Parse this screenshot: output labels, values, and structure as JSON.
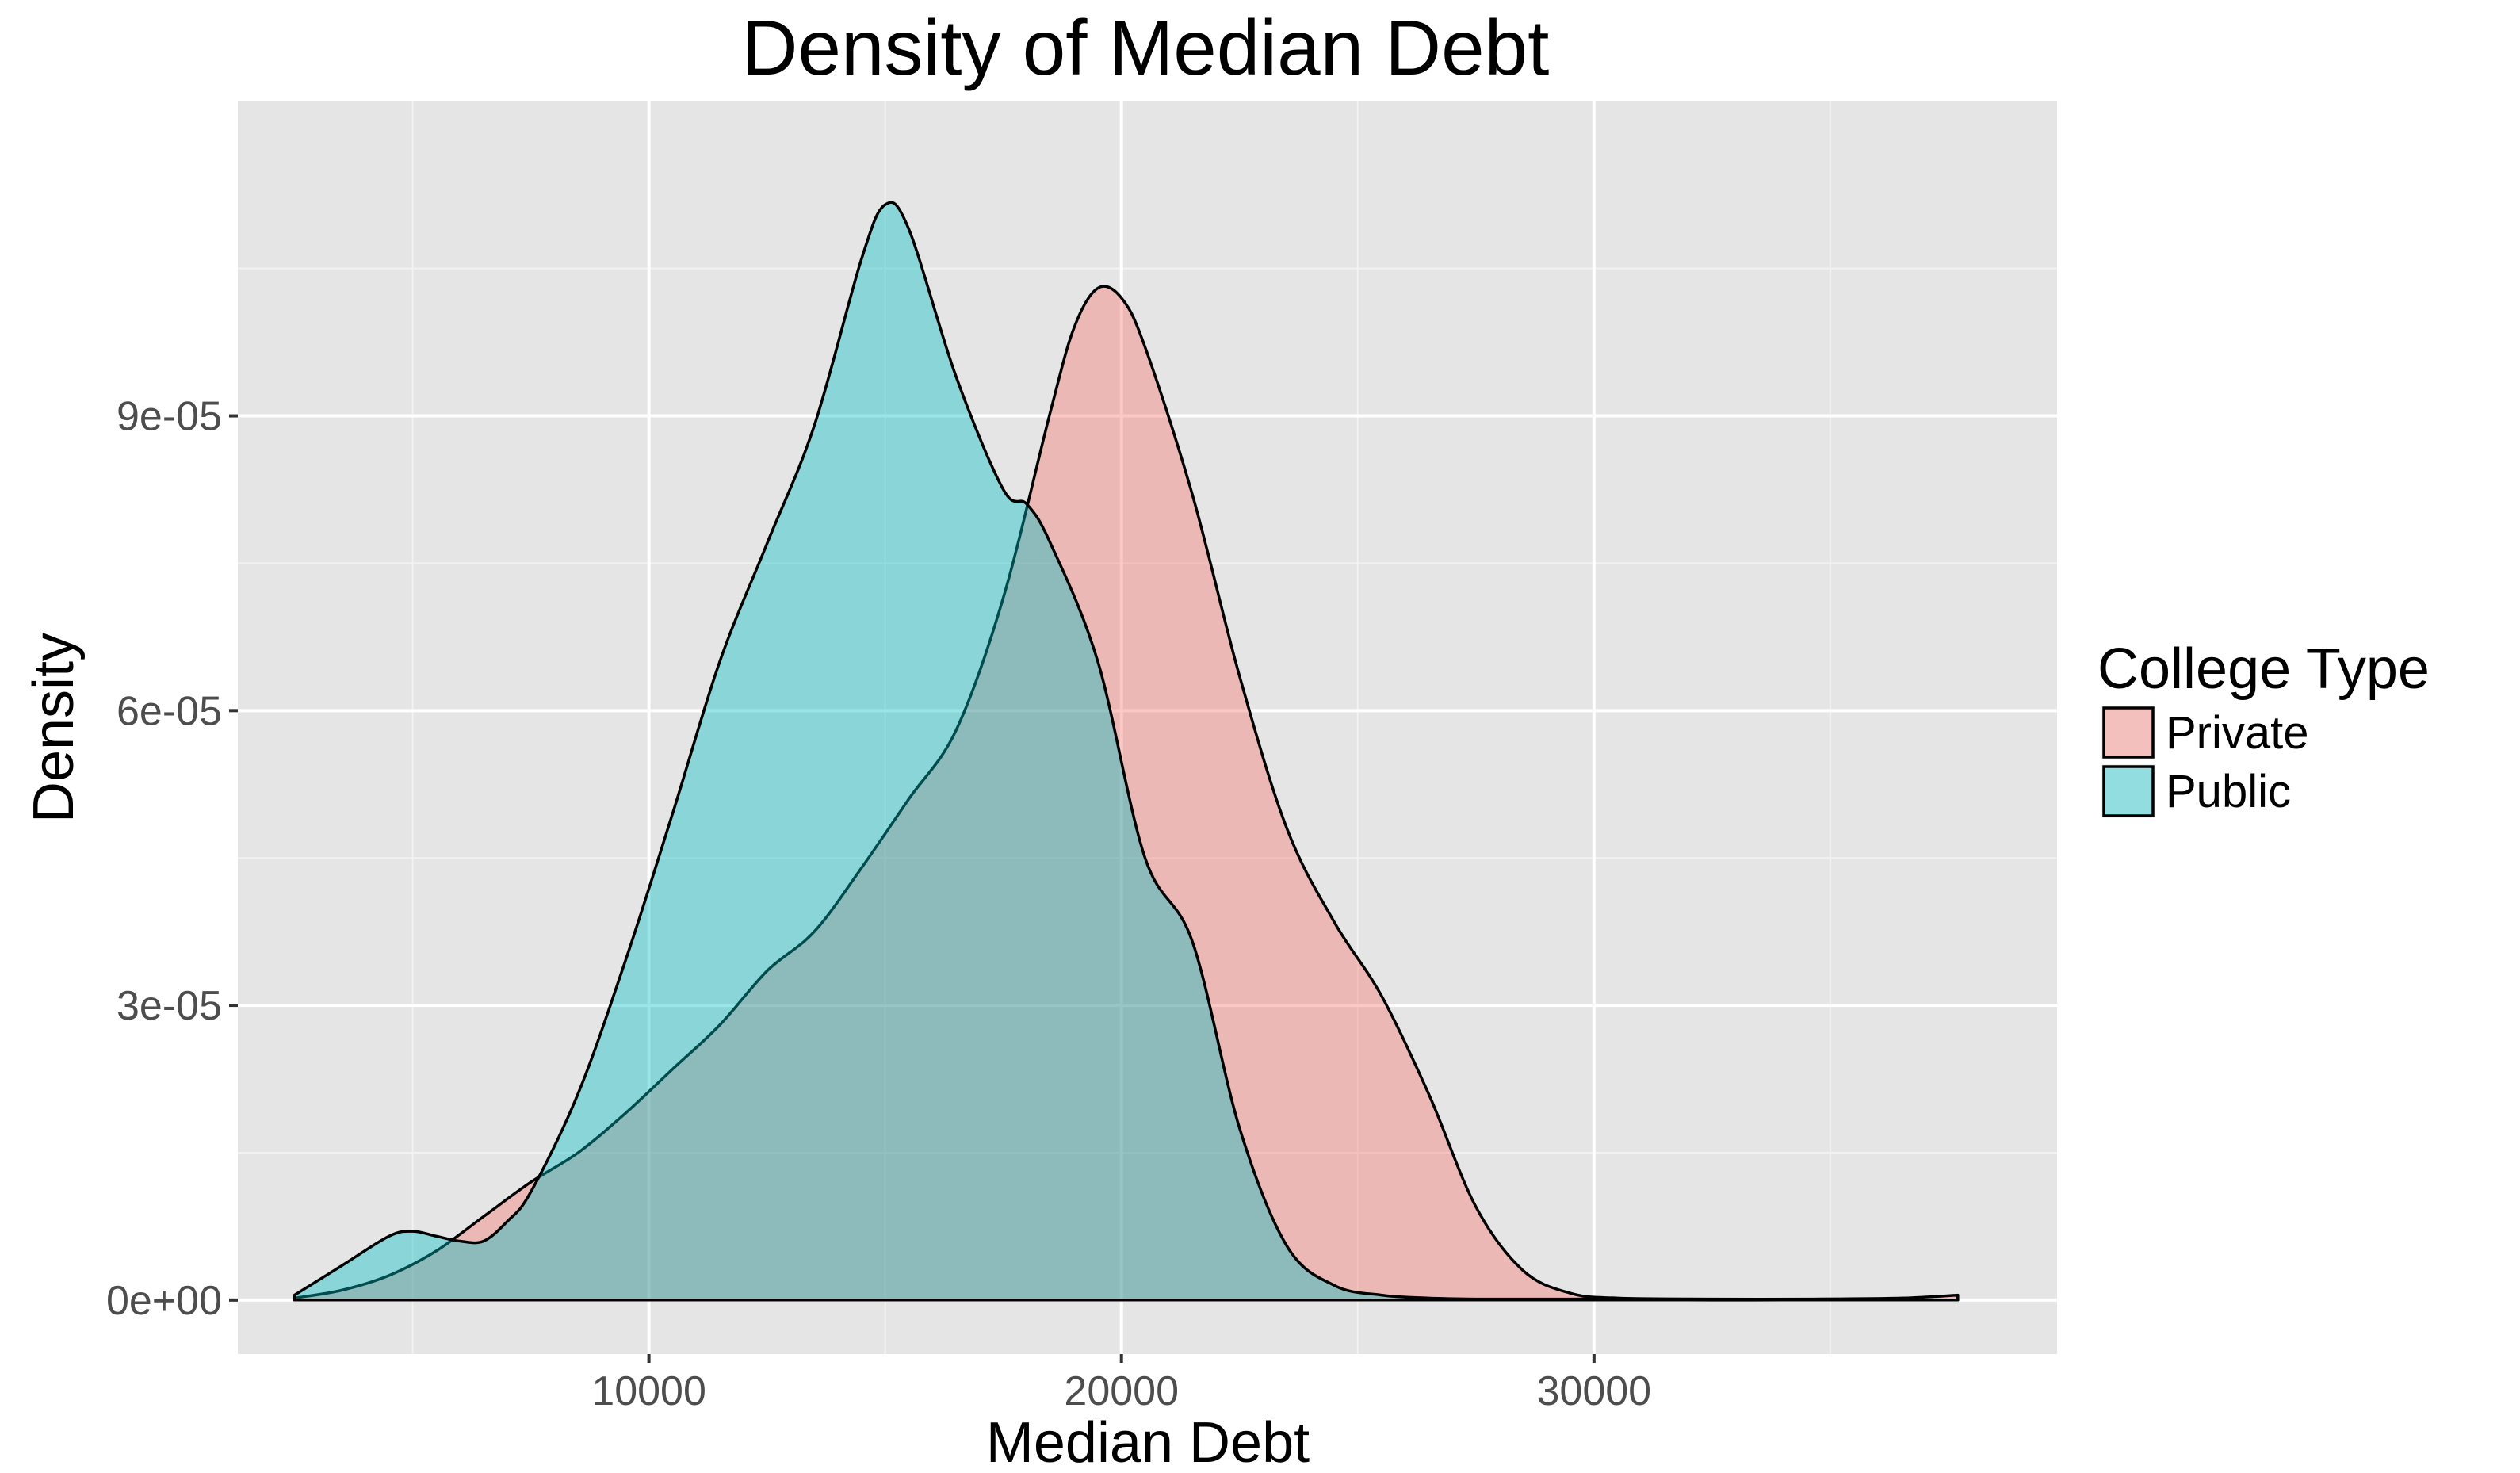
{
  "chart_data": {
    "type": "area",
    "title": "Density of Median Debt",
    "xlabel": "Median Debt",
    "ylabel": "Density",
    "xlim": [
      1300,
      39800
    ],
    "ylim": [
      -5.5e-06,
      0.000122
    ],
    "x_ticks": [
      10000,
      20000,
      30000
    ],
    "x_tick_labels": [
      "10000",
      "20000",
      "30000"
    ],
    "x_minor_ticks": [
      5000,
      15000,
      25000,
      35000
    ],
    "y_ticks": [
      0,
      3e-05,
      6e-05,
      9e-05
    ],
    "y_tick_labels": [
      "0e+00",
      "3e-05",
      "6e-05",
      "9e-05"
    ],
    "y_minor_ticks": [
      1.5e-05,
      4.5e-05,
      7.5e-05,
      0.000105
    ],
    "grid": true,
    "legend": {
      "title": "College Type",
      "position": "right"
    },
    "series": [
      {
        "name": "Private",
        "color": "#F8766D",
        "x": [
          2500,
          3500,
          4500,
          5500,
          6500,
          7500,
          8500,
          9500,
          10500,
          11500,
          12500,
          13500,
          14500,
          15500,
          16500,
          17500,
          18500,
          19000,
          19500,
          20000,
          20500,
          21500,
          22500,
          23500,
          24500,
          25500,
          26500,
          27500,
          28500,
          29500,
          30500,
          32500,
          34500,
          36500,
          37700
        ],
        "values": [
          2e-07,
          1e-06,
          2.5e-06,
          5e-06,
          8.5e-06,
          1.2e-05,
          1.5e-05,
          1.9e-05,
          2.35e-05,
          2.8e-05,
          3.35e-05,
          3.75e-05,
          4.4e-05,
          5.1e-05,
          5.8e-05,
          7.15e-05,
          9.05e-05,
          9.9e-05,
          0.000103,
          0.000102,
          9.7e-05,
          8.2e-05,
          6.35e-05,
          4.8e-05,
          3.85e-05,
          3.1e-05,
          2.1e-05,
          9.5e-06,
          3e-06,
          7e-07,
          2e-07,
          1e-07,
          1e-07,
          2e-07,
          5e-07
        ]
      },
      {
        "name": "Public",
        "color": "#00BFC4",
        "x": [
          2500,
          3500,
          4500,
          5000,
          5500,
          6000,
          6500,
          7000,
          7500,
          8500,
          9500,
          10500,
          11500,
          12500,
          13500,
          14500,
          15000,
          15500,
          16500,
          17500,
          18000,
          18500,
          19500,
          20500,
          21500,
          22500,
          23500,
          24500,
          25500,
          26500,
          27500,
          28500,
          29500,
          30500,
          32000,
          34000,
          36000,
          37700
        ],
        "values": [
          5e-07,
          3.5e-06,
          6.5e-06,
          7e-06,
          6.5e-06,
          6e-06,
          6e-06,
          8e-06,
          1.1e-05,
          2.1e-05,
          3.45e-05,
          4.95e-05,
          6.5e-05,
          7.7e-05,
          8.9e-05,
          0.000106,
          0.0001115,
          0.000109,
          9.4e-05,
          8.25e-05,
          8.1e-05,
          7.7e-05,
          6.5e-05,
          4.5e-05,
          3.65e-05,
          1.75e-05,
          5.5e-06,
          1.5e-06,
          5e-07,
          2e-07,
          1e-07,
          1e-07,
          1e-07,
          1e-07,
          0,
          0,
          0,
          0
        ]
      }
    ]
  }
}
